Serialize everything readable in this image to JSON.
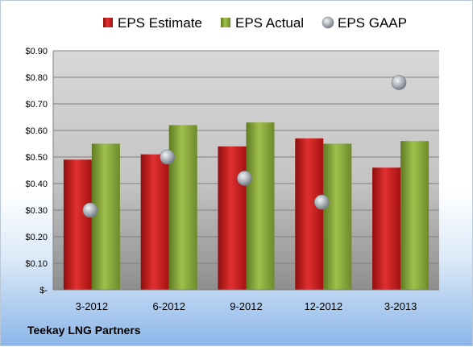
{
  "company": "Teekay LNG Partners",
  "chart_data": {
    "type": "bar",
    "categories": [
      "3-2012",
      "6-2012",
      "9-2012",
      "12-2012",
      "3-2013"
    ],
    "series": [
      {
        "name": "EPS Estimate",
        "type": "bar",
        "color": "#cc1f1f",
        "values": [
          0.49,
          0.51,
          0.54,
          0.57,
          0.46
        ]
      },
      {
        "name": "EPS Actual",
        "type": "bar",
        "color": "#8aa83a",
        "values": [
          0.55,
          0.62,
          0.63,
          0.55,
          0.56
        ]
      },
      {
        "name": "EPS GAAP",
        "type": "scatter",
        "color": "#9aa3ab",
        "values": [
          0.3,
          0.5,
          0.42,
          0.33,
          0.78
        ]
      }
    ],
    "ylim": [
      0,
      0.9
    ],
    "yticks": [
      0,
      0.1,
      0.2,
      0.3,
      0.4,
      0.5,
      0.6,
      0.7,
      0.8,
      0.9
    ],
    "ytick_labels": [
      "$-",
      "$0.10",
      "$0.20",
      "$0.30",
      "$0.40",
      "$0.50",
      "$0.60",
      "$0.70",
      "$0.80",
      "$0.90"
    ],
    "grid": true,
    "legend": "top"
  }
}
